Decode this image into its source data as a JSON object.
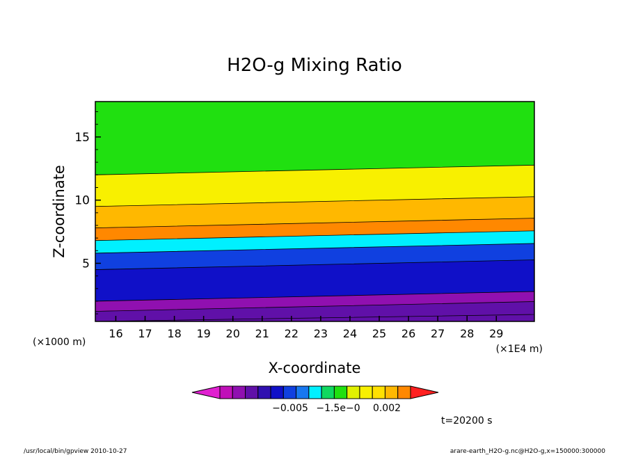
{
  "chart_data": {
    "type": "heatmap",
    "title": "H2O-g Mixing Ratio",
    "xlabel": "X-coordinate",
    "ylabel": "Z-coordinate",
    "x_unit_left": "(×1000 m)",
    "x_unit_right": "(×1E4 m)",
    "x_ticks": [
      "16",
      "17",
      "18",
      "19",
      "20",
      "21",
      "22",
      "23",
      "24",
      "25",
      "26",
      "27",
      "28",
      "29"
    ],
    "y_ticks": [
      "5",
      "10",
      "15"
    ],
    "xlim": [
      15.3,
      30.3
    ],
    "ylim": [
      0.4,
      17.8
    ],
    "colorbar": {
      "labels": [
        "−0.005",
        "−1.5e−0",
        "0.002"
      ],
      "levels": [
        {
          "color": "#e020d0"
        },
        {
          "color": "#c010b8"
        },
        {
          "color": "#9010b0"
        },
        {
          "color": "#6010a8"
        },
        {
          "color": "#3010b0"
        },
        {
          "color": "#1010c8"
        },
        {
          "color": "#1040e0"
        },
        {
          "color": "#1878f0"
        },
        {
          "color": "#00f0ff"
        },
        {
          "color": "#10d860"
        },
        {
          "color": "#20e010"
        },
        {
          "color": "#e0f000"
        },
        {
          "color": "#f8f000"
        },
        {
          "color": "#ffe000"
        },
        {
          "color": "#ffb800"
        },
        {
          "color": "#ff8800"
        },
        {
          "color": "#ff2020"
        }
      ]
    },
    "bands": [
      {
        "z_top": 1.2,
        "color": "#6010a8"
      },
      {
        "z_top": 2.0,
        "color": "#9010b0"
      },
      {
        "z_top": 4.5,
        "color": "#1010c8"
      },
      {
        "z_top": 5.8,
        "color": "#1040e0"
      },
      {
        "z_top": 6.8,
        "color": "#00f0ff"
      },
      {
        "z_top": 7.8,
        "color": "#ff8800"
      },
      {
        "z_top": 9.5,
        "color": "#ffb800"
      },
      {
        "z_top": 12.0,
        "color": "#f8f000"
      },
      {
        "z_top": 17.8,
        "color": "#20e010"
      }
    ]
  },
  "annotations": {
    "time": "t=20200 s",
    "footer_left": "/usr/local/bin/gpview  2010-10-27",
    "footer_right": "arare-earth_H2O-g.nc@H2O-g,x=150000:300000"
  }
}
